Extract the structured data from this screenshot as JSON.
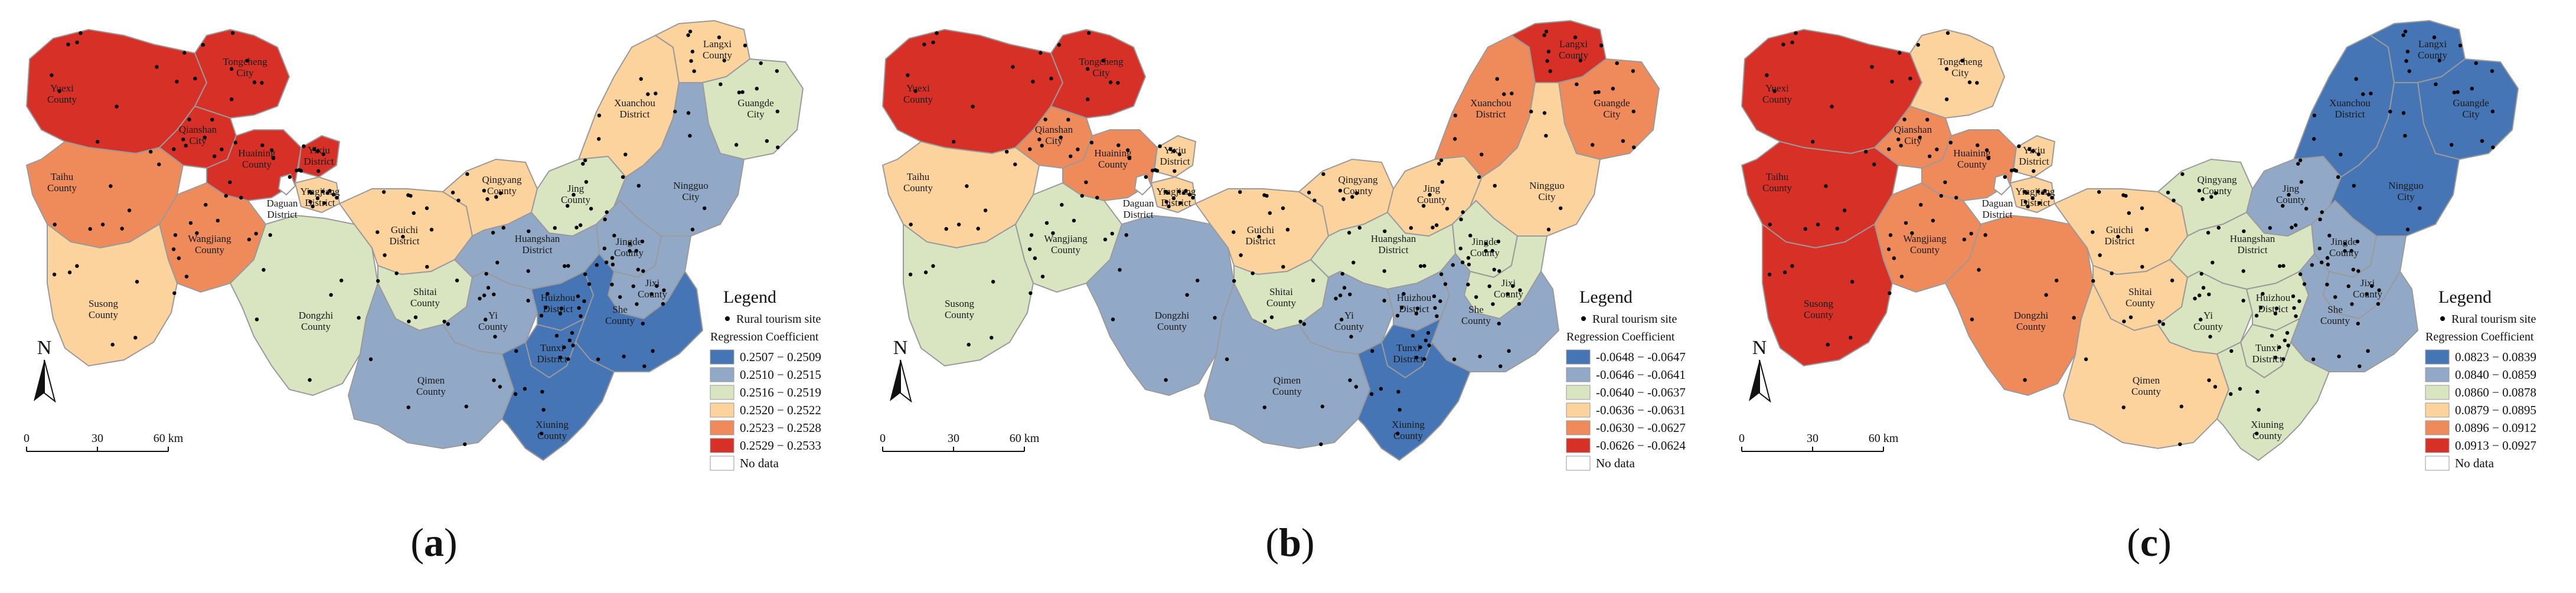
{
  "colors": {
    "class_1": "#4575b4",
    "class_2": "#91a9c7",
    "class_3": "#d9e4c1",
    "class_4": "#fdd39d",
    "class_5": "#ef8a5a",
    "class_6": "#d73027",
    "no_data": "#ffffff",
    "boundary": "#9a9a9a",
    "site": "#000000"
  },
  "districts": [
    {
      "id": "yuexi",
      "name": "Yuexi\nCounty"
    },
    {
      "id": "tongcheng",
      "name": "Tongcheng\nCity"
    },
    {
      "id": "qianshan",
      "name": "Qianshan\nCity"
    },
    {
      "id": "taihu",
      "name": "Taihu\nCounty"
    },
    {
      "id": "huaining",
      "name": "Huaining\nCounty"
    },
    {
      "id": "yixiu",
      "name": "Yixiu\nDistrict"
    },
    {
      "id": "daguan",
      "name": "Daguan\nDistrict"
    },
    {
      "id": "yingjiang",
      "name": "Yingjiang\nDistrict"
    },
    {
      "id": "wangjiang",
      "name": "Wangjiang\nCounty"
    },
    {
      "id": "susong",
      "name": "Susong\nCounty"
    },
    {
      "id": "dongzhi",
      "name": "Dongzhi\nCounty"
    },
    {
      "id": "guichi",
      "name": "Guichi\nDistrict"
    },
    {
      "id": "shitai",
      "name": "Shitai\nCounty"
    },
    {
      "id": "qingyang",
      "name": "Qingyang\nCounty"
    },
    {
      "id": "jing",
      "name": "Jing\nCounty"
    },
    {
      "id": "xuanchou",
      "name": "Xuanchou\nDistrict"
    },
    {
      "id": "langxi",
      "name": "Langxi\nCounty"
    },
    {
      "id": "guangde",
      "name": "Guangde\nCity"
    },
    {
      "id": "ningguo",
      "name": "Ningguo\nCity"
    },
    {
      "id": "jingde",
      "name": "Jingde\nCounty"
    },
    {
      "id": "huangshan",
      "name": "Huangshan\nDistrict"
    },
    {
      "id": "yi",
      "name": "Yi\nCounty"
    },
    {
      "id": "jixi",
      "name": "Jixi\nCounty"
    },
    {
      "id": "huizhou",
      "name": "Huizhou\nDistrict"
    },
    {
      "id": "she",
      "name": "She\nCounty"
    },
    {
      "id": "qimen",
      "name": "Qimen\nCounty"
    },
    {
      "id": "tunxi",
      "name": "Tunxi\nDistrict"
    },
    {
      "id": "xiuning",
      "name": "Xiuning\nCounty"
    }
  ],
  "panels": [
    {
      "label": "a",
      "legend_title": "Legend",
      "site_label": "Rural tourism site",
      "coef_title": "Regression Coefficient",
      "classes": [
        "0.2507 − 0.2509",
        "0.2510 − 0.2515",
        "0.2516 − 0.2519",
        "0.2520 − 0.2522",
        "0.2523 − 0.2528",
        "0.2529 − 0.2533"
      ],
      "no_data": "No data",
      "class_by_district": {
        "yuexi": 6,
        "tongcheng": 6,
        "qianshan": 6,
        "taihu": 5,
        "huaining": 6,
        "yixiu": 6,
        "daguan": 0,
        "yingjiang": 4,
        "wangjiang": 5,
        "susong": 4,
        "dongzhi": 3,
        "guichi": 4,
        "shitai": 3,
        "qingyang": 4,
        "jing": 3,
        "xuanchou": 4,
        "langxi": 4,
        "guangde": 3,
        "ningguo": 2,
        "jingde": 2,
        "huangshan": 2,
        "yi": 2,
        "jixi": 2,
        "huizhou": 1,
        "she": 1,
        "qimen": 2,
        "tunxi": 1,
        "xiuning": 1
      }
    },
    {
      "label": "b",
      "legend_title": "Legend",
      "site_label": "Rural tourism site",
      "coef_title": "Regression Coefficient",
      "classes": [
        "-0.0648 − -0.0647",
        "-0.0646 − -0.0641",
        "-0.0640 − -0.0637",
        "-0.0636 − -0.0631",
        "-0.0630 − -0.0627",
        "-0.0626 − -0.0624"
      ],
      "no_data": "No data",
      "class_by_district": {
        "yuexi": 6,
        "tongcheng": 6,
        "qianshan": 5,
        "taihu": 4,
        "huaining": 5,
        "yixiu": 4,
        "daguan": 0,
        "yingjiang": 4,
        "wangjiang": 3,
        "susong": 3,
        "dongzhi": 2,
        "guichi": 4,
        "shitai": 3,
        "qingyang": 4,
        "jing": 4,
        "xuanchou": 5,
        "langxi": 6,
        "guangde": 5,
        "ningguo": 4,
        "jingde": 3,
        "huangshan": 3,
        "yi": 2,
        "jixi": 3,
        "huizhou": 2,
        "she": 2,
        "qimen": 2,
        "tunxi": 1,
        "xiuning": 1
      }
    },
    {
      "label": "c",
      "legend_title": "Legend",
      "site_label": "Rural tourism site",
      "coef_title": "Regression Coefficient",
      "classes": [
        "0.0823 − 0.0839",
        "0.0840 − 0.0859",
        "0.0860 − 0.0878",
        "0.0879 − 0.0895",
        "0.0896 − 0.0912",
        "0.0913 − 0.0927"
      ],
      "no_data": "No data",
      "class_by_district": {
        "yuexi": 6,
        "tongcheng": 4,
        "qianshan": 5,
        "taihu": 6,
        "huaining": 5,
        "yixiu": 4,
        "daguan": 0,
        "yingjiang": 4,
        "wangjiang": 5,
        "susong": 6,
        "dongzhi": 5,
        "guichi": 4,
        "shitai": 4,
        "qingyang": 3,
        "jing": 2,
        "xuanchou": 1,
        "langxi": 1,
        "guangde": 1,
        "ningguo": 1,
        "jingde": 2,
        "huangshan": 3,
        "yi": 3,
        "jixi": 2,
        "huizhou": 3,
        "she": 2,
        "qimen": 4,
        "tunxi": 3,
        "xiuning": 3
      }
    }
  ],
  "scale_bar": {
    "ticks": [
      "0",
      "30",
      "60 km"
    ]
  },
  "north_label": "N"
}
